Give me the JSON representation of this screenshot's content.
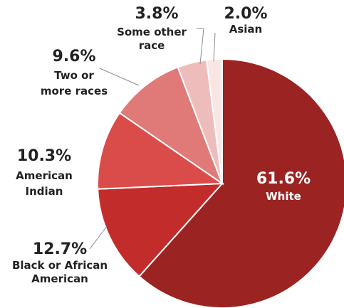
{
  "chart_data": {
    "type": "pie",
    "slices": [
      {
        "label": "White",
        "value": 61.6,
        "value_label": "61.6%",
        "color": "#9b2322"
      },
      {
        "label": "Black or African American",
        "label_lines": [
          "Black or African",
          "American"
        ],
        "value": 12.7,
        "value_label": "12.7%",
        "color": "#c22c2b"
      },
      {
        "label": "American Indian",
        "label_lines": [
          "American",
          "Indian"
        ],
        "value": 10.3,
        "value_label": "10.3%",
        "color": "#d94c49"
      },
      {
        "label": "Two or more races",
        "label_lines": [
          "Two or",
          "more races"
        ],
        "value": 9.6,
        "value_label": "9.6%",
        "color": "#df7a78"
      },
      {
        "label": "Some other race",
        "label_lines": [
          "Some other",
          "race"
        ],
        "value": 3.8,
        "value_label": "3.8%",
        "color": "#efbcbc"
      },
      {
        "label": "Asian",
        "label_lines": [
          "Asian"
        ],
        "value": 2.0,
        "value_label": "2.0%",
        "color": "#f8e6e5"
      }
    ]
  }
}
